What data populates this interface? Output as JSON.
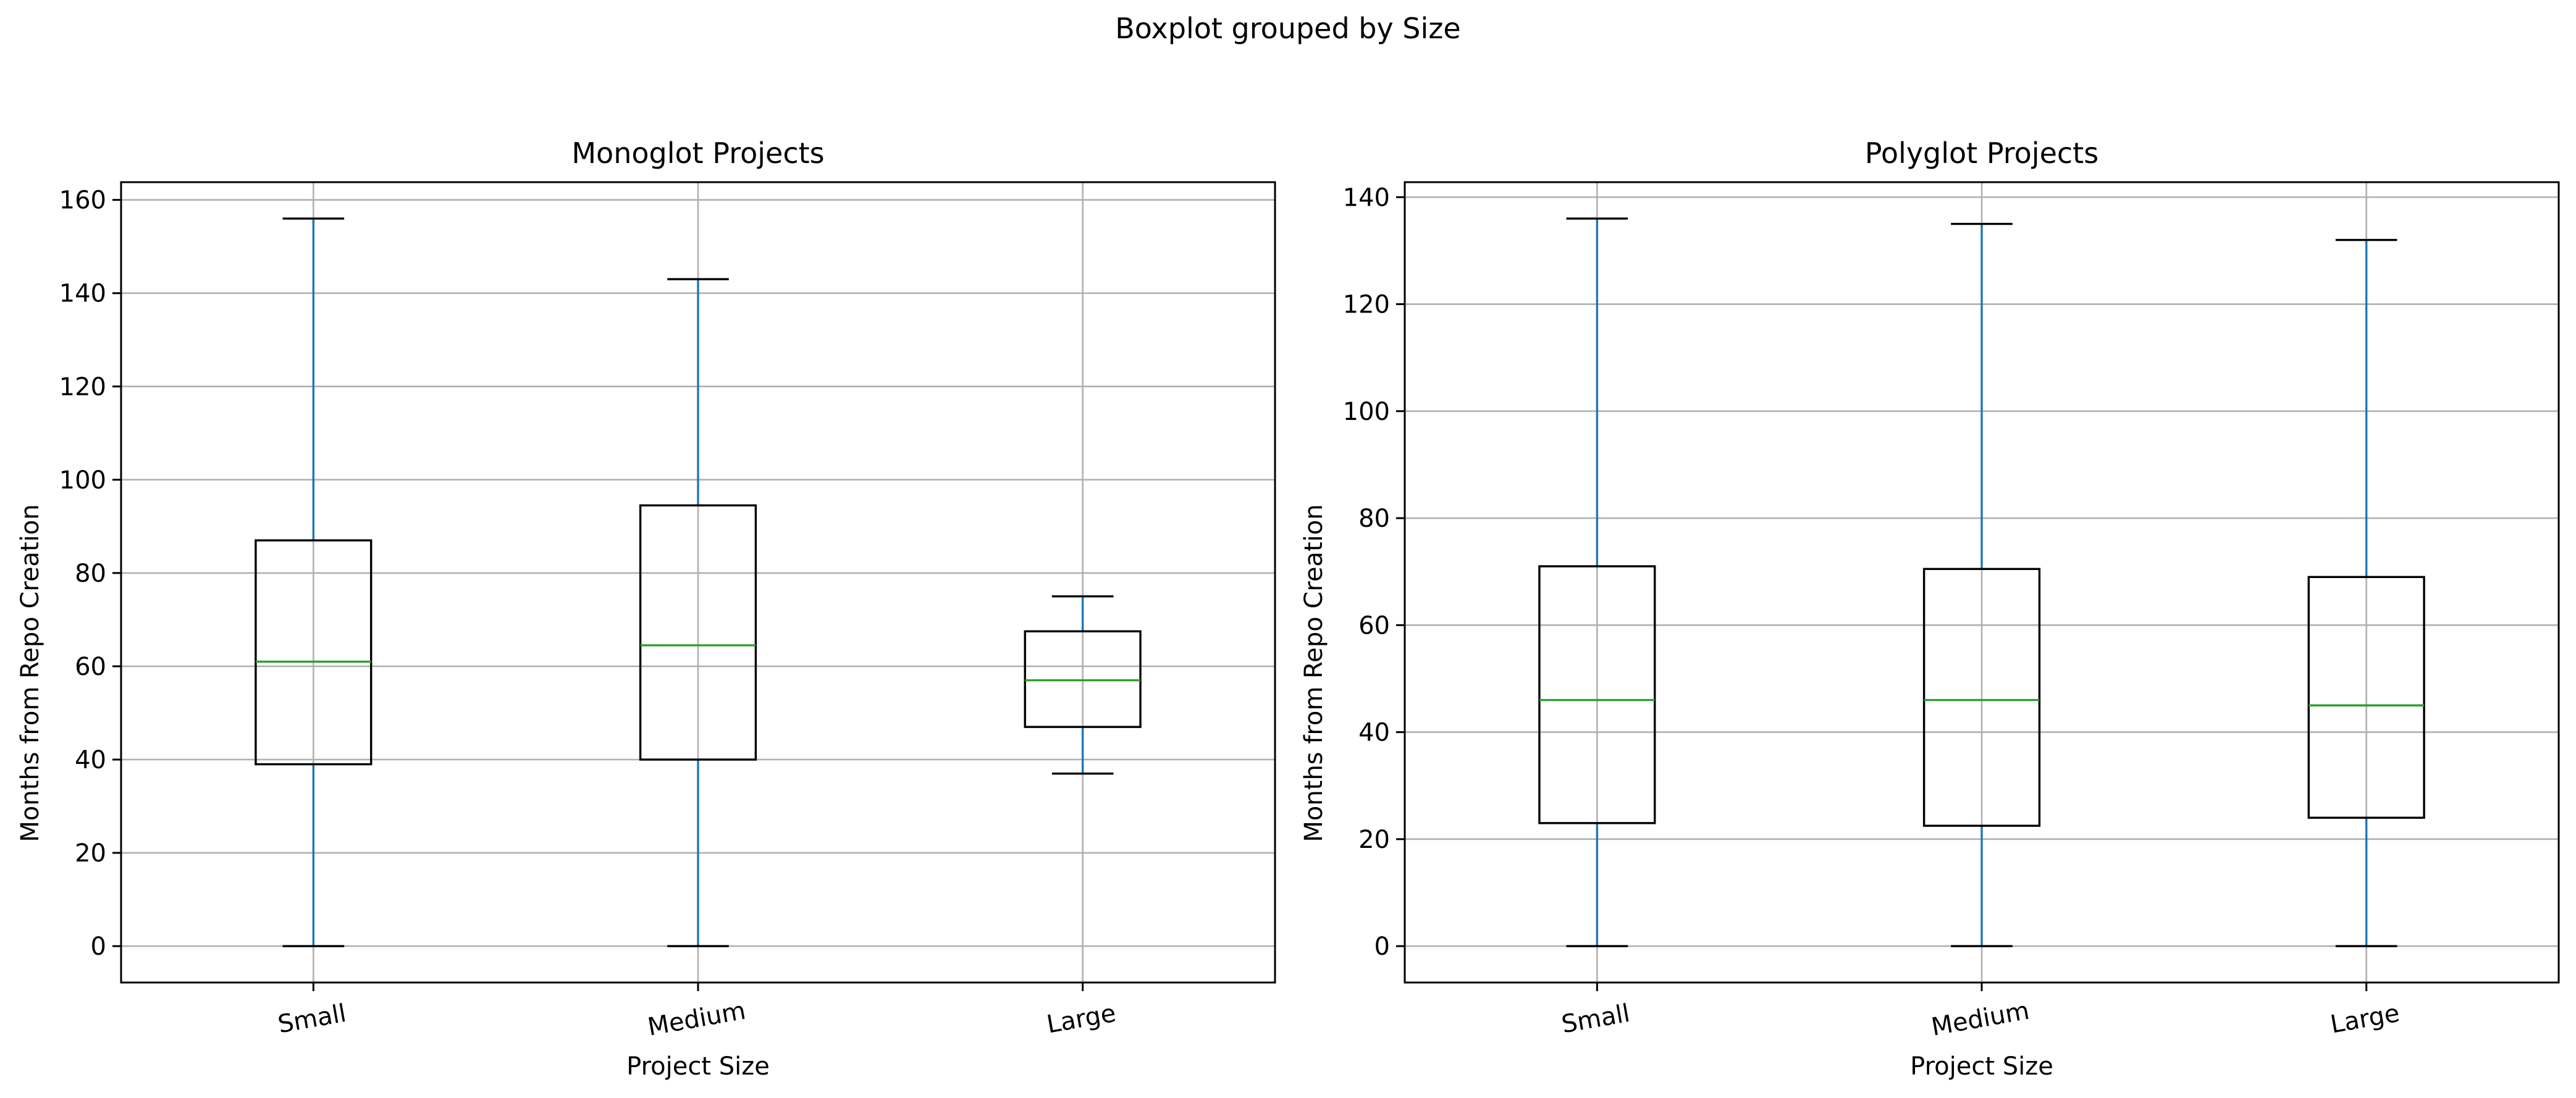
{
  "figure": {
    "suptitle": "Boxplot grouped by Size"
  },
  "colors": {
    "whisker": "#1f77b4",
    "median": "#2ca02c",
    "box": "#000000",
    "grid": "#b0b0b0"
  },
  "chart_data": [
    {
      "type": "box",
      "title": "Monoglot Projects",
      "xlabel": "Project Size",
      "ylabel": "Months from Repo Creation",
      "categories": [
        "Small",
        "Medium",
        "Large"
      ],
      "boxes": [
        {
          "min": 0,
          "q1": 39,
          "median": 61,
          "q3": 87,
          "max": 156
        },
        {
          "min": 0,
          "q1": 40,
          "median": 64.5,
          "q3": 94.5,
          "max": 143
        },
        {
          "min": 37,
          "q1": 47,
          "median": 57,
          "q3": 67.5,
          "max": 75
        }
      ],
      "ylim": [
        -7.8,
        163.8
      ],
      "yticks": [
        0,
        20,
        40,
        60,
        80,
        100,
        120,
        140,
        160
      ],
      "grid": true
    },
    {
      "type": "box",
      "title": "Polyglot Projects",
      "xlabel": "Project Size",
      "ylabel": "Months from Repo Creation",
      "categories": [
        "Small",
        "Medium",
        "Large"
      ],
      "boxes": [
        {
          "min": 0,
          "q1": 23,
          "median": 46,
          "q3": 71,
          "max": 136
        },
        {
          "min": 0,
          "q1": 22.5,
          "median": 46,
          "q3": 70.5,
          "max": 135
        },
        {
          "min": 0,
          "q1": 24,
          "median": 45,
          "q3": 69,
          "max": 132
        }
      ],
      "ylim": [
        -6.8,
        142.8
      ],
      "yticks": [
        0,
        20,
        40,
        60,
        80,
        100,
        120,
        140
      ],
      "grid": true
    }
  ]
}
